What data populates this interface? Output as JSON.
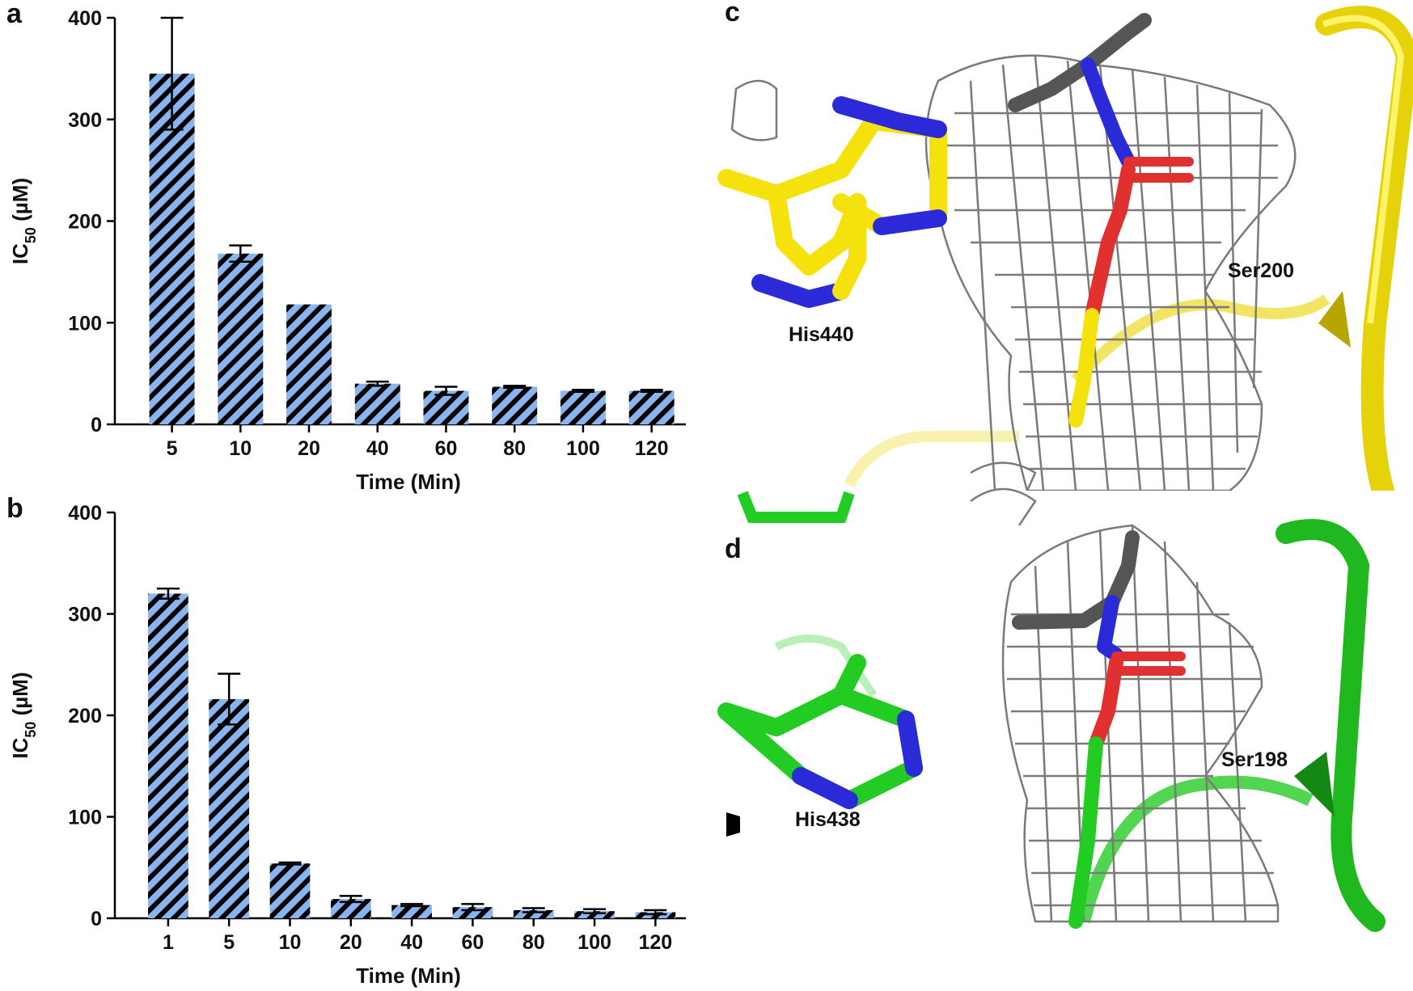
{
  "panels": {
    "a": "a",
    "b": "b",
    "c": "c",
    "d": "d"
  },
  "structure_labels": {
    "c_his": "His440",
    "c_ser": "Ser200",
    "d_his": "His438",
    "d_ser": "Ser198"
  },
  "colors": {
    "bar_fill": "#8ab4f0",
    "bar_hatch": "#000000",
    "carbon_c": "#f5e20c",
    "carbon_d": "#22cc22",
    "nitrogen": "#2a2ad8",
    "oxygen": "#e03030",
    "ligand_carbon": "#555555",
    "mesh": "#7a7a7a"
  },
  "chart_data": [
    {
      "panel": "a",
      "type": "bar",
      "categories": [
        "5",
        "10",
        "20",
        "40",
        "60",
        "80",
        "100",
        "120"
      ],
      "values": [
        345,
        168,
        118,
        40,
        33,
        37,
        33,
        33
      ],
      "errors": [
        55,
        8,
        0,
        2,
        4,
        1,
        1,
        1
      ],
      "xlabel": "Time (Min)",
      "ylabel": "IC50 (µM)",
      "ylabel_main": "IC",
      "ylabel_sub": "50",
      "ylabel_unit": " (µM)",
      "ylim": [
        0,
        400
      ],
      "yticks": [
        "0",
        "100",
        "200",
        "300",
        "400"
      ],
      "pattern": "diagonal-hatch"
    },
    {
      "panel": "b",
      "type": "bar",
      "categories": [
        "1",
        "5",
        "10",
        "20",
        "40",
        "60",
        "80",
        "100",
        "120"
      ],
      "values": [
        320,
        216,
        54,
        19,
        13,
        11,
        8,
        7,
        6
      ],
      "errors": [
        5,
        25,
        1,
        3,
        1,
        3,
        2,
        2,
        2
      ],
      "xlabel": "Time (Min)",
      "ylabel": "IC50 (µM)",
      "ylabel_main": "IC",
      "ylabel_sub": "50",
      "ylabel_unit": " (µM)",
      "ylim": [
        0,
        400
      ],
      "yticks": [
        "0",
        "100",
        "200",
        "300",
        "400"
      ],
      "pattern": "diagonal-hatch"
    }
  ]
}
